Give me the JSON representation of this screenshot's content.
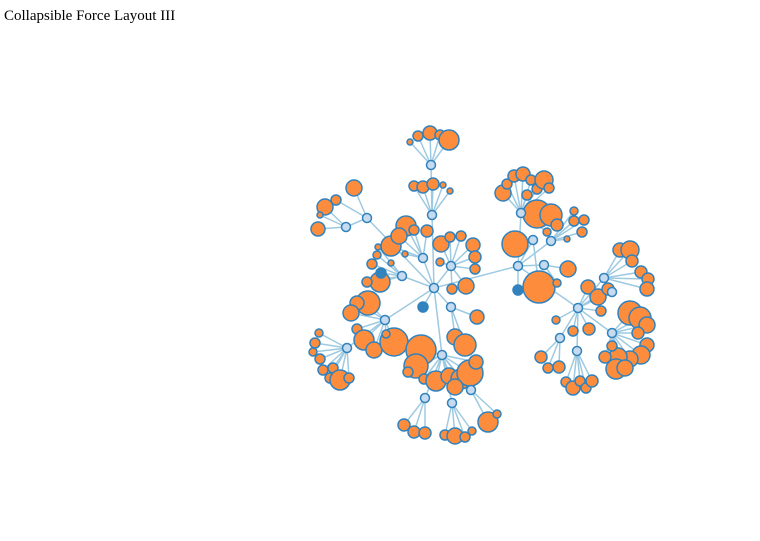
{
  "page": {
    "title": "Collapsible Force Layout III"
  },
  "colors": {
    "background": "#ffffff",
    "link": "#9ecae1",
    "node_stroke": "#3182bd",
    "leaf_fill": "#fd8d3c",
    "expanded_fill": "#c6dbef",
    "collapsed_fill": "#3182bd"
  },
  "diagram": {
    "type": "force-directed-tree",
    "node_states": [
      "expanded",
      "collapsed",
      "leaf"
    ]
  }
}
